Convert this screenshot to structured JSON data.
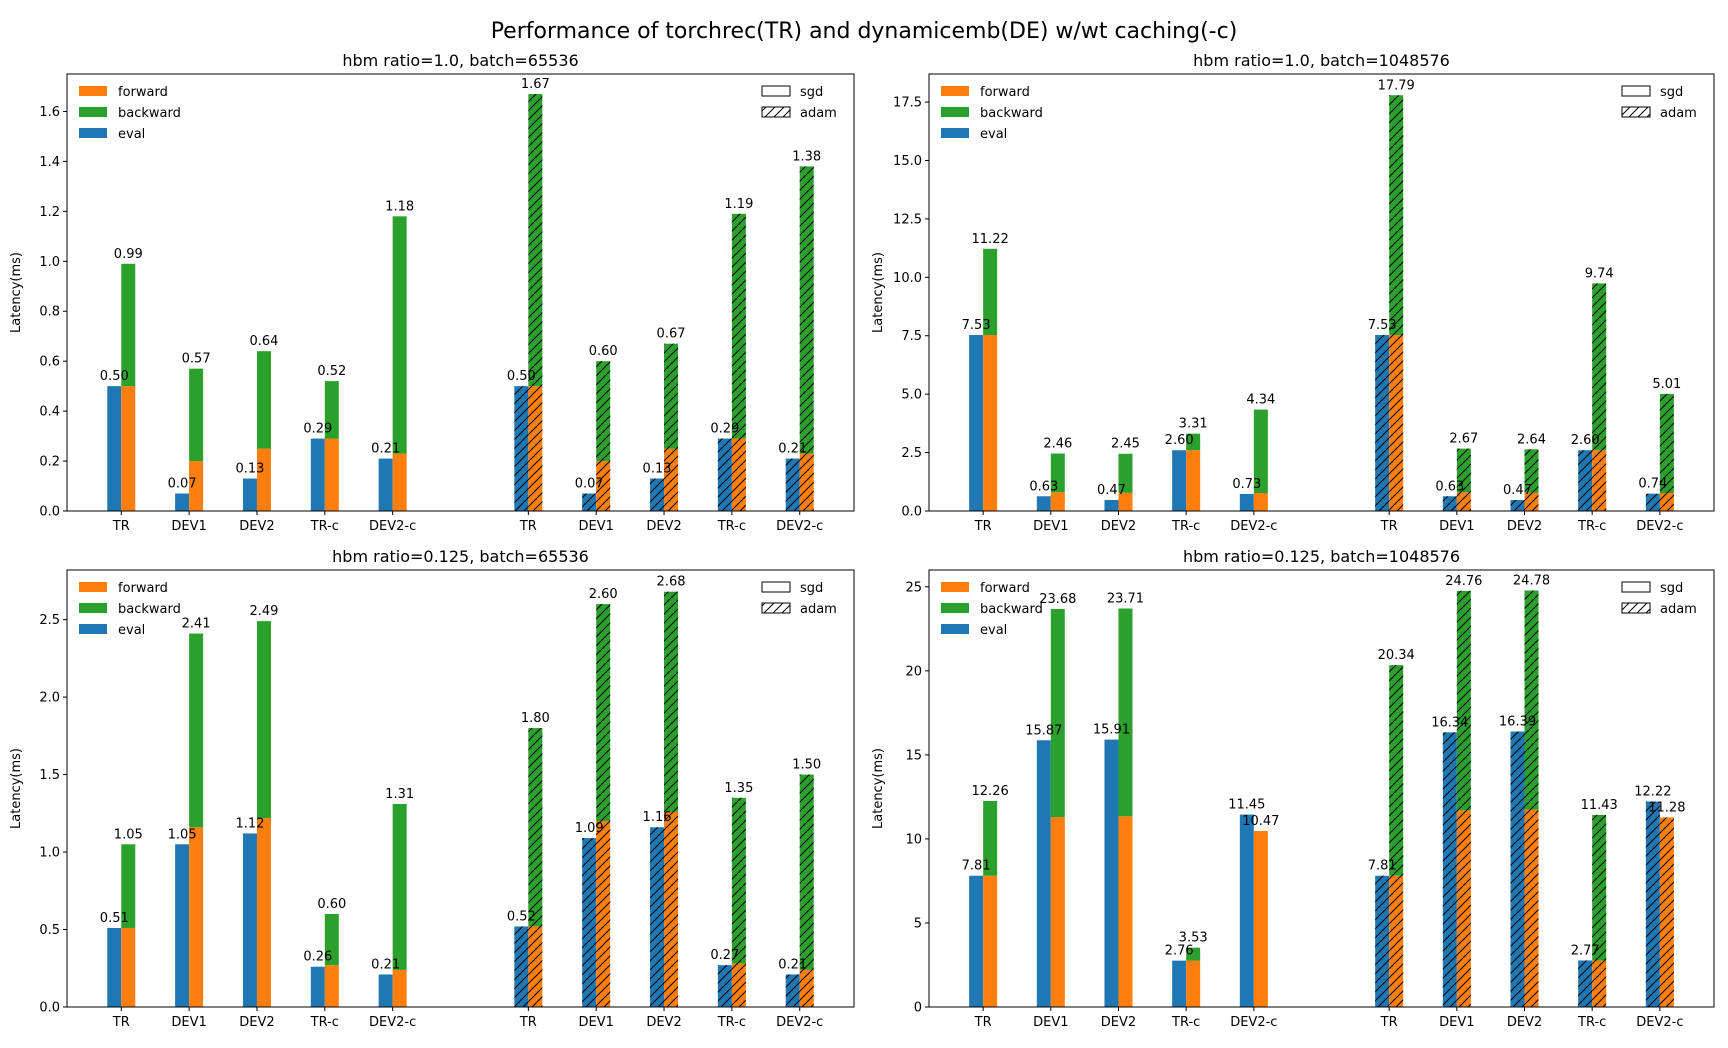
{
  "title": "Performance of torchrec(TR) and dynamicemb(DE) w/wt caching(-c)",
  "colors": {
    "forward": "#ff7f0e",
    "backward": "#2ca02c",
    "eval": "#1f77b4"
  },
  "legend_series": [
    "forward",
    "backward",
    "eval"
  ],
  "legend_optimizers": [
    "sgd",
    "adam"
  ],
  "chart_data": [
    {
      "type": "bar",
      "title": "hbm ratio=1.0, batch=65536",
      "ylabel": "Latency(ms)",
      "ylim": [
        0,
        1.75
      ],
      "yticks": [
        0.0,
        0.2,
        0.4,
        0.6,
        0.8,
        1.0,
        1.2,
        1.4,
        1.6
      ],
      "ytick_decimals": 1,
      "groups": [
        {
          "optimizer": "sgd",
          "categories": [
            "TR",
            "DEV1",
            "DEV2",
            "TR-c",
            "DEV2-c"
          ],
          "eval": [
            0.5,
            0.07,
            0.13,
            0.29,
            0.21
          ],
          "forward": [
            0.5,
            0.2,
            0.25,
            0.29,
            0.23
          ],
          "total": [
            0.99,
            0.57,
            0.64,
            0.52,
            1.18
          ],
          "eval_labels": [
            "0.50",
            "0.07",
            "0.13",
            "0.29",
            "0.21"
          ],
          "total_labels": [
            "0.99",
            "0.57",
            "0.64",
            "0.52",
            "1.18"
          ]
        },
        {
          "optimizer": "adam",
          "categories": [
            "TR",
            "DEV1",
            "DEV2",
            "TR-c",
            "DEV2-c"
          ],
          "eval": [
            0.5,
            0.07,
            0.13,
            0.29,
            0.21
          ],
          "forward": [
            0.5,
            0.2,
            0.25,
            0.29,
            0.23
          ],
          "total": [
            1.67,
            0.6,
            0.67,
            1.19,
            1.38
          ],
          "eval_labels": [
            "0.50",
            "0.07",
            "0.13",
            "0.29",
            "0.21"
          ],
          "total_labels": [
            "1.67",
            "0.60",
            "0.67",
            "1.19",
            "1.38"
          ]
        }
      ]
    },
    {
      "type": "bar",
      "title": "hbm ratio=1.0, batch=1048576",
      "ylabel": "Latency(ms)",
      "ylim": [
        0,
        18.7
      ],
      "yticks": [
        0.0,
        2.5,
        5.0,
        7.5,
        10.0,
        12.5,
        15.0,
        17.5
      ],
      "ytick_decimals": 1,
      "groups": [
        {
          "optimizer": "sgd",
          "categories": [
            "TR",
            "DEV1",
            "DEV2",
            "TR-c",
            "DEV2-c"
          ],
          "eval": [
            7.53,
            0.63,
            0.47,
            2.6,
            0.73
          ],
          "forward": [
            7.53,
            0.8,
            0.78,
            2.6,
            0.77
          ],
          "total": [
            11.22,
            2.46,
            2.45,
            3.31,
            4.34
          ],
          "eval_labels": [
            "7.53",
            "0.63",
            "0.47",
            "2.60",
            "0.73"
          ],
          "total_labels": [
            "11.22",
            "2.46",
            "2.45",
            "3.31",
            "4.34"
          ]
        },
        {
          "optimizer": "adam",
          "categories": [
            "TR",
            "DEV1",
            "DEV2",
            "TR-c",
            "DEV2-c"
          ],
          "eval": [
            7.53,
            0.63,
            0.47,
            2.6,
            0.74
          ],
          "forward": [
            7.53,
            0.8,
            0.78,
            2.6,
            0.77
          ],
          "total": [
            17.79,
            2.67,
            2.64,
            9.74,
            5.01
          ],
          "eval_labels": [
            "7.53",
            "0.63",
            "0.47",
            "2.60",
            "0.74"
          ],
          "total_labels": [
            "17.79",
            "2.67",
            "2.64",
            "9.74",
            "5.01"
          ]
        }
      ]
    },
    {
      "type": "bar",
      "title": "hbm ratio=0.125, batch=65536",
      "ylabel": "Latency(ms)",
      "ylim": [
        0,
        2.82
      ],
      "yticks": [
        0.0,
        0.5,
        1.0,
        1.5,
        2.0,
        2.5
      ],
      "ytick_decimals": 1,
      "groups": [
        {
          "optimizer": "sgd",
          "categories": [
            "TR",
            "DEV1",
            "DEV2",
            "TR-c",
            "DEV2-c"
          ],
          "eval": [
            0.51,
            1.05,
            1.12,
            0.26,
            0.21
          ],
          "forward": [
            0.51,
            1.16,
            1.22,
            0.27,
            0.24
          ],
          "total": [
            1.05,
            2.41,
            2.49,
            0.6,
            1.31
          ],
          "eval_labels": [
            "0.51",
            "1.05",
            "1.12",
            "0.26",
            "0.21"
          ],
          "total_labels": [
            "1.05",
            "2.41",
            "2.49",
            "0.60",
            "1.31"
          ]
        },
        {
          "optimizer": "adam",
          "categories": [
            "TR",
            "DEV1",
            "DEV2",
            "TR-c",
            "DEV2-c"
          ],
          "eval": [
            0.52,
            1.09,
            1.16,
            0.27,
            0.21
          ],
          "forward": [
            0.52,
            1.2,
            1.26,
            0.28,
            0.24
          ],
          "total": [
            1.8,
            2.6,
            2.68,
            1.35,
            1.5
          ],
          "eval_labels": [
            "0.52",
            "1.09",
            "1.16",
            "0.27",
            "0.21"
          ],
          "total_labels": [
            "1.80",
            "2.60",
            "2.68",
            "1.35",
            "1.50"
          ]
        }
      ]
    },
    {
      "type": "bar",
      "title": "hbm ratio=0.125, batch=1048576",
      "ylabel": "Latency(ms)",
      "ylim": [
        0,
        26
      ],
      "yticks": [
        0,
        5,
        10,
        15,
        20,
        25
      ],
      "ytick_decimals": 0,
      "groups": [
        {
          "optimizer": "sgd",
          "categories": [
            "TR",
            "DEV1",
            "DEV2",
            "TR-c",
            "DEV2-c"
          ],
          "eval": [
            7.81,
            15.87,
            15.91,
            2.76,
            11.45
          ],
          "forward": [
            7.81,
            11.3,
            11.35,
            2.76,
            10.47
          ],
          "total": [
            12.26,
            23.68,
            23.71,
            3.53,
            10.47
          ],
          "eval_labels": [
            "7.81",
            "15.87",
            "15.91",
            "2.76",
            "11.45"
          ],
          "total_labels": [
            "12.26",
            "23.68",
            "23.71",
            "3.53",
            "10.47"
          ]
        },
        {
          "optimizer": "adam",
          "categories": [
            "TR",
            "DEV1",
            "DEV2",
            "TR-c",
            "DEV2-c"
          ],
          "eval": [
            7.81,
            16.34,
            16.39,
            2.77,
            12.22
          ],
          "forward": [
            7.81,
            11.7,
            11.75,
            2.77,
            11.28
          ],
          "total": [
            20.34,
            24.76,
            24.78,
            11.43,
            11.28
          ],
          "eval_labels": [
            "7.81",
            "16.34",
            "16.39",
            "2.77",
            "12.22"
          ],
          "total_labels": [
            "20.34",
            "24.76",
            "24.78",
            "11.43",
            "11.28"
          ]
        }
      ]
    }
  ]
}
